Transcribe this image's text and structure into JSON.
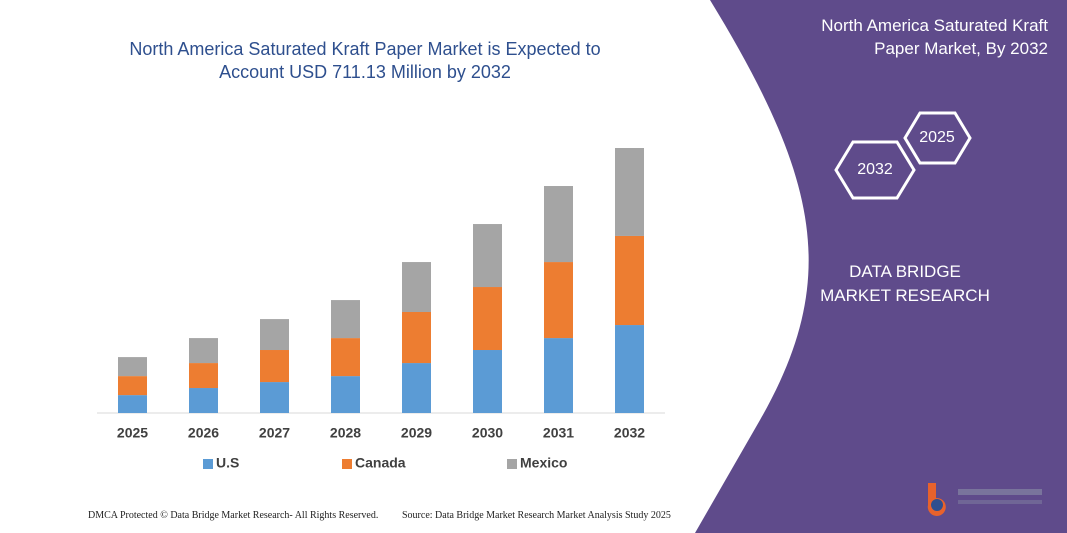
{
  "chart_data": {
    "type": "stacked-bar",
    "title": "North America Saturated Kraft Paper Market is Expected to Account USD 711.13 Million by 2032",
    "categories": [
      "2025",
      "2026",
      "2027",
      "2028",
      "2029",
      "2030",
      "2031",
      "2032"
    ],
    "series": [
      {
        "name": "U.S",
        "color": "#5b9bd5",
        "values": [
          48,
          67,
          83,
          99,
          134,
          169,
          201,
          236
        ]
      },
      {
        "name": "Canada",
        "color": "#ed7d31",
        "values": [
          51,
          67,
          86,
          102,
          137,
          169,
          204,
          239
        ]
      },
      {
        "name": "Mexico",
        "color": "#a5a5a5",
        "values": [
          51,
          67,
          83,
          102,
          134,
          169,
          204,
          236
        ]
      }
    ]
  },
  "panel": {
    "title": "North America Saturated Kraft Paper Market, By 2032",
    "hexagons": [
      "2025",
      "2032"
    ],
    "brand": "DATA BRIDGE MARKET RESEARCH"
  },
  "footer": {
    "left": "DMCA Protected © Data Bridge Market Research- All Rights Reserved.",
    "right": "Source: Data Bridge Market Research Market Analysis Study 2025"
  }
}
